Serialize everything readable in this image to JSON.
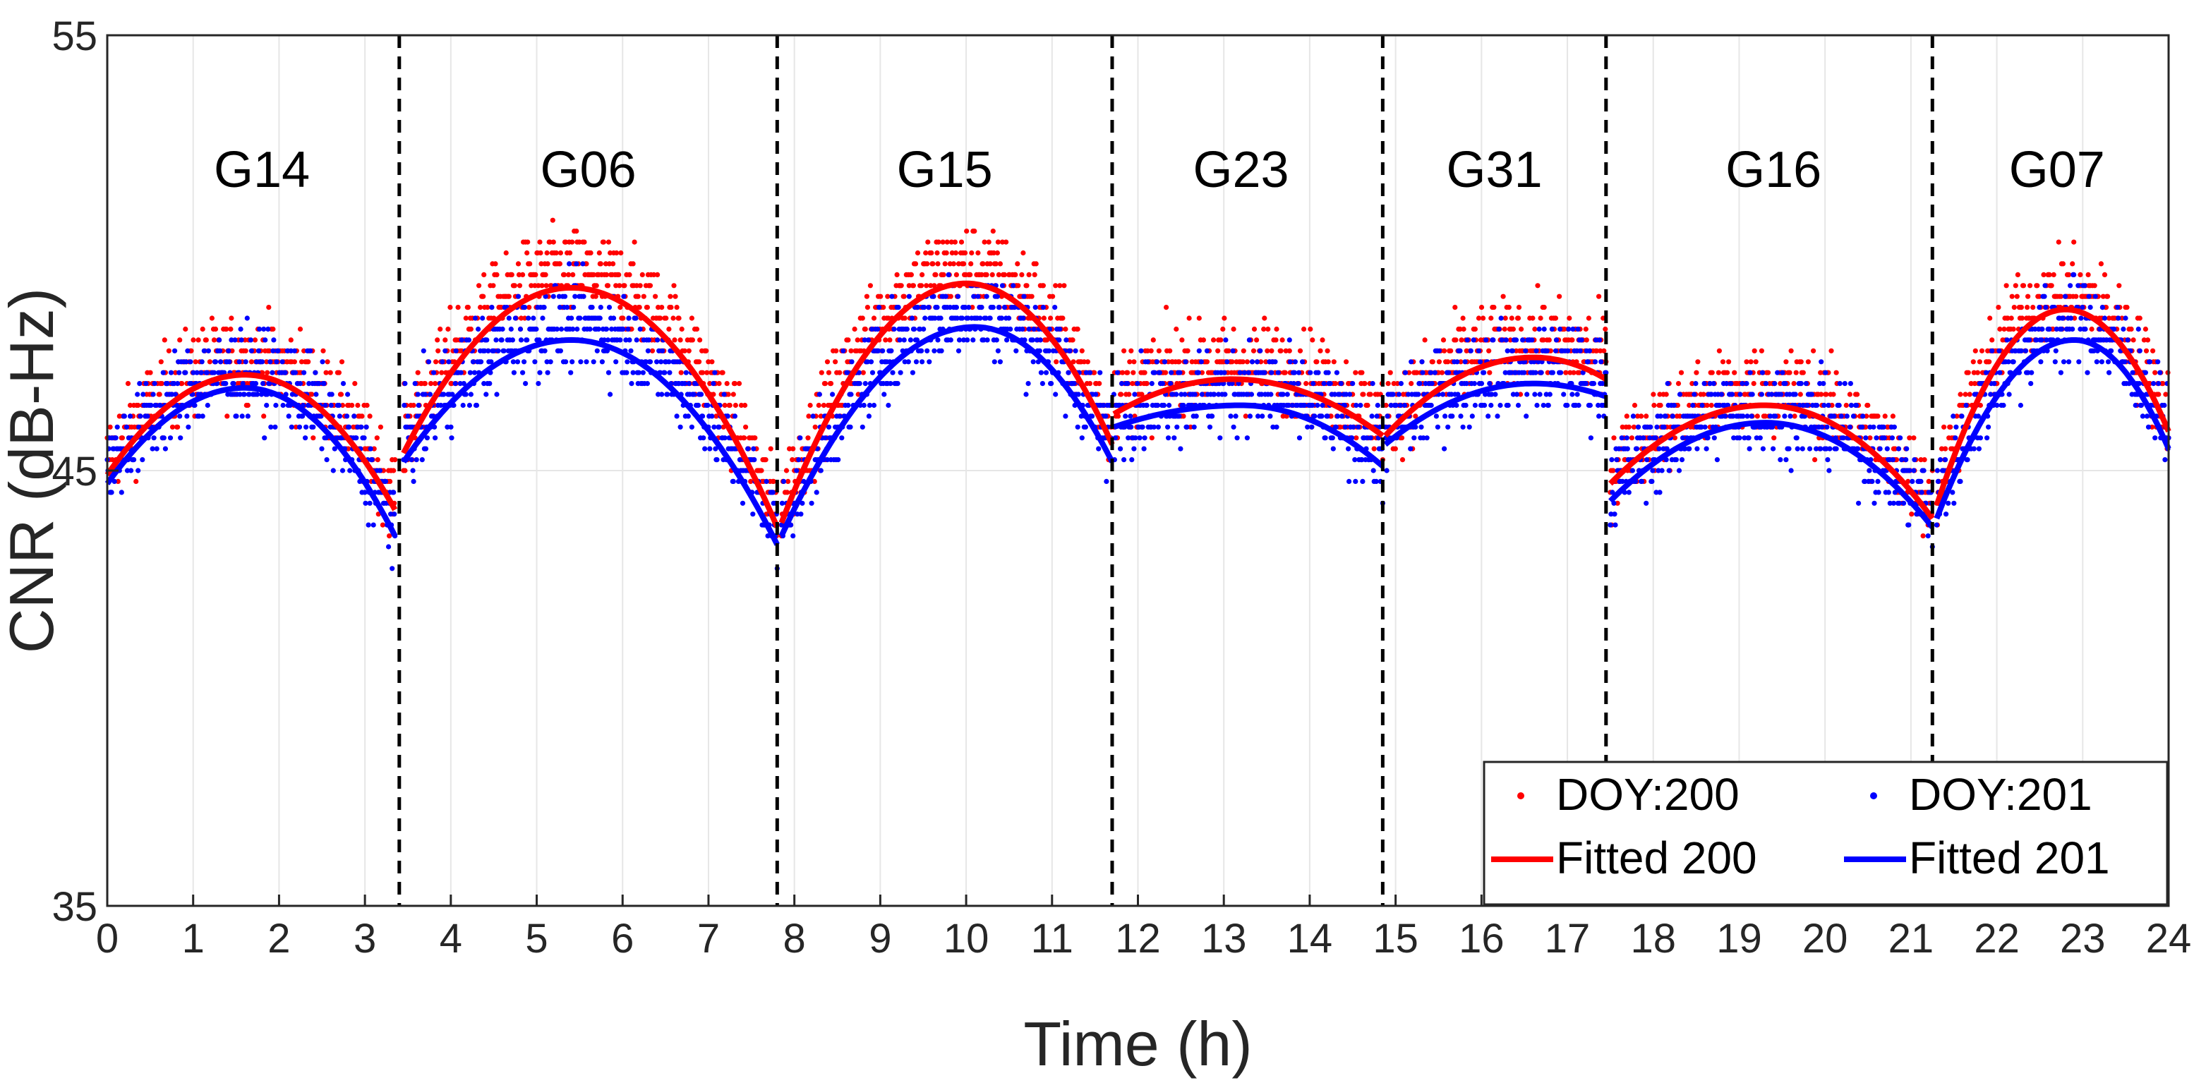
{
  "chart_data": {
    "type": "scatter",
    "xlabel": "Time (h)",
    "ylabel": "CNR (dB-Hz)",
    "xlim": [
      0,
      24
    ],
    "ylim": [
      35,
      55
    ],
    "xticks": [
      "0",
      "1",
      "2",
      "3",
      "4",
      "5",
      "6",
      "7",
      "8",
      "9",
      "10",
      "11",
      "12",
      "13",
      "14",
      "15",
      "16",
      "17",
      "18",
      "19",
      "20",
      "21",
      "22",
      "23",
      "24"
    ],
    "yticks": [
      "35",
      "45",
      "55"
    ],
    "grid": true,
    "boundaries": [
      3.4,
      7.8,
      11.7,
      14.85,
      17.45,
      21.25
    ],
    "satellites": [
      {
        "name": "G14",
        "x": 1.8
      },
      {
        "name": "G06",
        "x": 5.6
      },
      {
        "name": "G15",
        "x": 9.75
      },
      {
        "name": "G23",
        "x": 13.2
      },
      {
        "name": "G31",
        "x": 16.15
      },
      {
        "name": "G16",
        "x": 19.4
      },
      {
        "name": "G07",
        "x": 22.7
      }
    ],
    "series": [
      {
        "name": "DOY:200",
        "kind": "points",
        "color": "#ff0000",
        "segments": [
          {
            "x0": 0.0,
            "x1": 3.35,
            "peak_x": 1.6,
            "peak_y": 47.2,
            "start_y": 44.9,
            "end_y": 44.1
          },
          {
            "x0": 3.45,
            "x1": 7.8,
            "peak_x": 5.4,
            "peak_y": 49.2,
            "start_y": 45.4,
            "end_y": 43.7
          },
          {
            "x0": 7.85,
            "x1": 11.7,
            "peak_x": 10.0,
            "peak_y": 49.3,
            "start_y": 43.8,
            "end_y": 45.6
          },
          {
            "x0": 11.72,
            "x1": 14.85,
            "peak_x": 13.1,
            "peak_y": 47.1,
            "start_y": 46.3,
            "end_y": 45.8
          },
          {
            "x0": 14.88,
            "x1": 17.45,
            "peak_x": 16.6,
            "peak_y": 47.6,
            "start_y": 45.8,
            "end_y": 47.1
          },
          {
            "x0": 17.5,
            "x1": 21.25,
            "peak_x": 19.3,
            "peak_y": 46.5,
            "start_y": 44.7,
            "end_y": 43.9
          },
          {
            "x0": 21.3,
            "x1": 24.0,
            "peak_x": 22.8,
            "peak_y": 48.7,
            "start_y": 44.2,
            "end_y": 45.9
          }
        ]
      },
      {
        "name": "DOY:201",
        "kind": "points",
        "color": "#0000ff",
        "segments": [
          {
            "x0": 0.0,
            "x1": 3.35,
            "peak_x": 1.6,
            "peak_y": 46.9,
            "start_y": 44.7,
            "end_y": 43.5
          },
          {
            "x0": 3.45,
            "x1": 7.8,
            "peak_x": 5.4,
            "peak_y": 48.0,
            "start_y": 45.2,
            "end_y": 43.3
          },
          {
            "x0": 7.85,
            "x1": 11.7,
            "peak_x": 10.1,
            "peak_y": 48.3,
            "start_y": 43.5,
            "end_y": 45.2
          },
          {
            "x0": 11.72,
            "x1": 14.85,
            "peak_x": 13.2,
            "peak_y": 46.5,
            "start_y": 46.0,
            "end_y": 45.1
          },
          {
            "x0": 14.88,
            "x1": 17.45,
            "peak_x": 16.6,
            "peak_y": 47.0,
            "start_y": 45.6,
            "end_y": 46.7
          },
          {
            "x0": 17.5,
            "x1": 21.25,
            "peak_x": 19.3,
            "peak_y": 46.1,
            "start_y": 44.3,
            "end_y": 43.7
          },
          {
            "x0": 21.3,
            "x1": 24.0,
            "peak_x": 22.9,
            "peak_y": 48.0,
            "start_y": 43.9,
            "end_y": 45.5
          }
        ]
      }
    ],
    "legend": {
      "position": "bottom-right",
      "entries": [
        {
          "label": "DOY:200",
          "style": "point",
          "color": "#ff0000"
        },
        {
          "label": "DOY:201",
          "style": "point",
          "color": "#0000ff"
        },
        {
          "label": "Fitted 200",
          "style": "line",
          "color": "#ff0000"
        },
        {
          "label": "Fitted 201",
          "style": "line",
          "color": "#0000ff"
        }
      ]
    }
  }
}
